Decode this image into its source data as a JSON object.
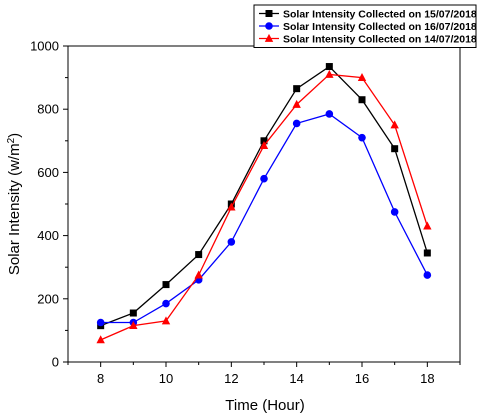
{
  "chart_data": {
    "type": "line",
    "xlabel": "Time (Hour)",
    "ylabel": "Solar Intensity (w/m",
    "ylabel_sup": "2",
    "ylabel_end": ")",
    "x": [
      8,
      9,
      10,
      11,
      12,
      13,
      14,
      15,
      16,
      17,
      18
    ],
    "xlim": [
      7,
      19
    ],
    "ylim": [
      0,
      1000
    ],
    "x_ticks": [
      8,
      10,
      12,
      14,
      16,
      18
    ],
    "y_ticks": [
      0,
      200,
      400,
      600,
      800,
      1000
    ],
    "grid": false,
    "legend_position": "top-right",
    "series": [
      {
        "name": "Solar Intensity Collected on 15/07/2018",
        "color": "#000000",
        "marker": "square",
        "values": [
          115,
          155,
          245,
          340,
          500,
          700,
          865,
          935,
          830,
          675,
          345
        ]
      },
      {
        "name": "Solar Intensity Collected on 16/07/2018",
        "color": "#0000ff",
        "marker": "circle",
        "values": [
          125,
          125,
          185,
          260,
          380,
          580,
          755,
          785,
          710,
          475,
          275
        ]
      },
      {
        "name": "Solar Intensity Collected on 14/07/2018",
        "color": "#ff0000",
        "marker": "triangle",
        "values": [
          70,
          115,
          130,
          275,
          490,
          685,
          815,
          910,
          900,
          750,
          430
        ]
      }
    ]
  }
}
